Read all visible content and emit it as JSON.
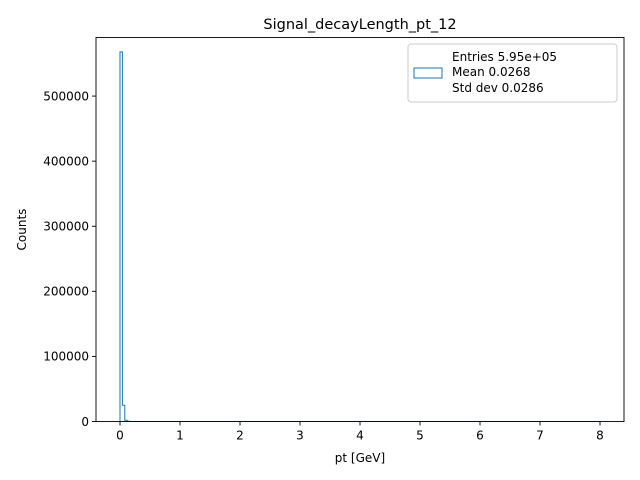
{
  "chart_data": {
    "type": "histogram",
    "title": "Signal_decayLength_pt_12",
    "xlabel": "pt [GeV]",
    "ylabel": "Counts",
    "xlim": [
      -0.4,
      8.4
    ],
    "ylim": [
      0,
      590000
    ],
    "x_ticks": [
      0,
      1,
      2,
      3,
      4,
      5,
      6,
      7,
      8
    ],
    "x_tick_labels": [
      "0",
      "1",
      "2",
      "3",
      "4",
      "5",
      "6",
      "7",
      "8"
    ],
    "y_ticks": [
      0,
      100000,
      200000,
      300000,
      400000,
      500000
    ],
    "y_tick_labels": [
      "0",
      "100000",
      "200000",
      "300000",
      "400000",
      "500000"
    ],
    "grid": false,
    "legend_position": "top-right",
    "legend_lines": [
      "Entries 5.95e+05",
      "Mean 0.0268",
      "Std dev 0.0286"
    ],
    "series": [
      {
        "color": "#1f77b4",
        "bin_edges": [
          0,
          0.04,
          0.08,
          0.12,
          0.16,
          8
        ],
        "counts": [
          568000,
          25000,
          2000,
          300,
          0
        ]
      }
    ]
  }
}
